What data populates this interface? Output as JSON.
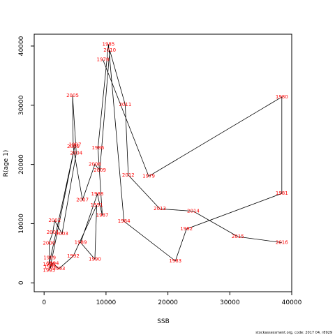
{
  "chart_data": {
    "type": "line",
    "xlabel": "SSB",
    "ylabel": "R(age 1)",
    "footer": "stockassessment.org, code: 2017 04, r8929",
    "labels": [
      "1978",
      "1979",
      "1980",
      "1981",
      "1982",
      "1983",
      "1984",
      "1985",
      "1986",
      "1987",
      "1988",
      "1989",
      "1990",
      "1991",
      "1992",
      "1993",
      "1994",
      "1995",
      "1996",
      "1997",
      "1998",
      "1999",
      "2000",
      "2001",
      "2002",
      "2003",
      "2004",
      "2005",
      "2006",
      "2007",
      "2008",
      "2009",
      "2010",
      "2011",
      "2012",
      "2013",
      "2014",
      "2015",
      "2016"
    ],
    "x": [
      9500,
      16900,
      38400,
      38400,
      23000,
      21200,
      12900,
      10400,
      8700,
      9400,
      8600,
      5900,
      8200,
      8500,
      4700,
      2400,
      1400,
      800,
      1000,
      5000,
      800,
      900,
      800,
      1400,
      1700,
      2900,
      5200,
      4600,
      4700,
      6200,
      8200,
      9000,
      10600,
      13100,
      13600,
      18700,
      24100,
      31300,
      38400
    ],
    "y": [
      37700,
      18000,
      31400,
      15100,
      9100,
      3700,
      10400,
      40300,
      22800,
      11400,
      15000,
      6800,
      4000,
      13100,
      4500,
      2400,
      3300,
      2100,
      2700,
      23300,
      3100,
      4200,
      6700,
      8500,
      10500,
      8300,
      21900,
      31600,
      23000,
      14000,
      20000,
      19000,
      39300,
      30100,
      18200,
      12500,
      12100,
      7800,
      6800
    ],
    "line_color": "#000000",
    "label_color": "#ff0000",
    "xlim": [
      -1600,
      40000
    ],
    "ylim": [
      -1500,
      42000
    ],
    "xticks": [
      0,
      10000,
      20000,
      30000,
      40000
    ],
    "yticks": [
      0,
      10000,
      20000,
      30000,
      40000
    ]
  }
}
